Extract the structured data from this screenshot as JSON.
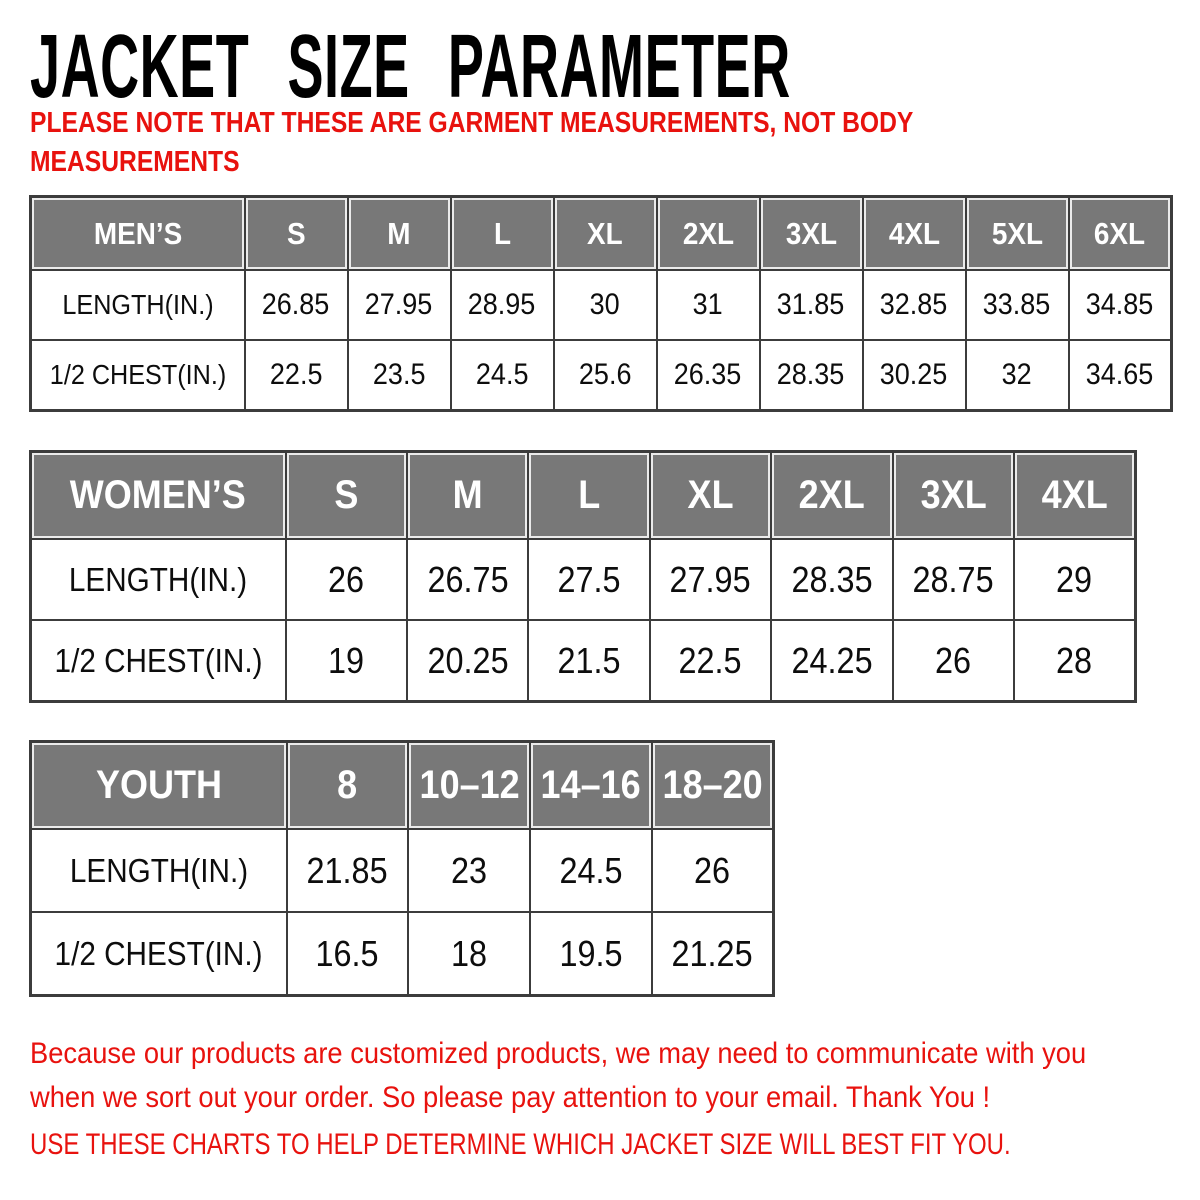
{
  "page": {
    "title": "JACKET SIZE PARAMETER"
  },
  "note": {
    "lines": [
      "PLEASE NOTE THAT THESE ARE GARMENT MEASUREMENTS, NOT BODY",
      "MEASUREMENTS"
    ]
  },
  "colors": {
    "header_bg": "#787878",
    "header_text": "#ffffff",
    "accent_red": "#e8120e",
    "table_border": "#3c3c3c"
  },
  "tables": [
    {
      "id": "mens",
      "header": [
        "MEN’S",
        "S",
        "M",
        "L",
        "XL",
        "2XL",
        "3XL",
        "4XL",
        "5XL",
        "6XL"
      ],
      "rows": [
        {
          "label": "LENGTH(IN.)",
          "values": [
            "26.85",
            "27.95",
            "28.95",
            "30",
            "31",
            "31.85",
            "32.85",
            "33.85",
            "34.85"
          ]
        },
        {
          "label": "1/2 CHEST(IN.)",
          "values": [
            "22.5",
            "23.5",
            "24.5",
            "25.6",
            "26.35",
            "28.35",
            "30.25",
            "32",
            "34.65"
          ]
        }
      ]
    },
    {
      "id": "womens",
      "header": [
        "WOMEN’S",
        "S",
        "M",
        "L",
        "XL",
        "2XL",
        "3XL",
        "4XL"
      ],
      "rows": [
        {
          "label": "LENGTH(IN.)",
          "values": [
            "26",
            "26.75",
            "27.5",
            "27.95",
            "28.35",
            "28.75",
            "29"
          ]
        },
        {
          "label": "1/2 CHEST(IN.)",
          "values": [
            "19",
            "20.25",
            "21.5",
            "22.5",
            "24.25",
            "26",
            "28"
          ]
        }
      ]
    },
    {
      "id": "youth",
      "header": [
        "YOUTH",
        "8",
        "10–12",
        "14–16",
        "18–20"
      ],
      "rows": [
        {
          "label": "LENGTH(IN.)",
          "values": [
            "21.85",
            "23",
            "24.5",
            "26"
          ]
        },
        {
          "label": "1/2 CHEST(IN.)",
          "values": [
            "16.5",
            "18",
            "19.5",
            "21.25"
          ]
        }
      ]
    }
  ],
  "footer": {
    "para_lines": [
      "Because our products are customized products, we may need to communicate with you",
      "when we sort out your order. So please pay attention to your email. Thank You !"
    ],
    "use_line": "USE THESE CHARTS TO HELP DETERMINE WHICH JACKET SIZE WILL BEST FIT YOU."
  }
}
